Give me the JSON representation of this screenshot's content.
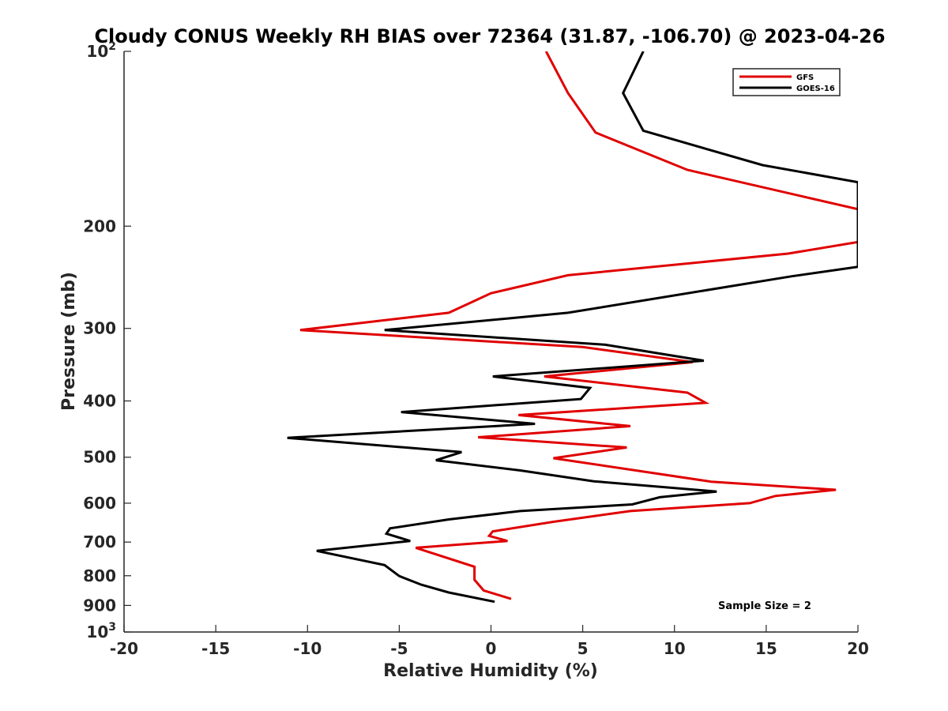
{
  "chart_data": {
    "type": "line",
    "title": "Cloudy CONUS Weekly RH BIAS over 72364 (31.87, -106.70) @ 2023-04-26",
    "xlabel": "Relative Humidity (%)",
    "ylabel": "Pressure (mb)",
    "xlim": [
      -20,
      20
    ],
    "ylim": [
      100,
      1000
    ],
    "yscale": "log",
    "y_reversed": true,
    "x_ticks": [
      "-20",
      "-15",
      "-10",
      "-5",
      "0",
      "5",
      "10",
      "15",
      "20"
    ],
    "y_ticks": [
      {
        "value": 100,
        "base": "10",
        "exp": "2"
      },
      {
        "value": 200,
        "label": "200"
      },
      {
        "value": 300,
        "label": "300"
      },
      {
        "value": 400,
        "label": "400"
      },
      {
        "value": 500,
        "label": "500"
      },
      {
        "value": 600,
        "label": "600"
      },
      {
        "value": 700,
        "label": "700"
      },
      {
        "value": 800,
        "label": "800"
      },
      {
        "value": 900,
        "label": "900"
      },
      {
        "value": 1000,
        "base": "10",
        "exp": "3"
      }
    ],
    "grid": false,
    "legend_position": "top-right",
    "annotation": "Sample Size = 2",
    "series": [
      {
        "name": "GFS",
        "color": "#e00000",
        "points": [
          {
            "x": 3.0,
            "y": 100
          },
          {
            "x": 4.2,
            "y": 118
          },
          {
            "x": 5.7,
            "y": 138
          },
          {
            "x": 10.7,
            "y": 160
          },
          {
            "x": 20.0,
            "y": 187
          },
          {
            "x": 20.0,
            "y": 213
          },
          {
            "x": 16.2,
            "y": 223
          },
          {
            "x": 4.2,
            "y": 243
          },
          {
            "x": 0.0,
            "y": 261
          },
          {
            "x": -2.3,
            "y": 282
          },
          {
            "x": -10.4,
            "y": 302
          },
          {
            "x": 5.0,
            "y": 323
          },
          {
            "x": 11.0,
            "y": 343
          },
          {
            "x": 2.9,
            "y": 363
          },
          {
            "x": 10.7,
            "y": 387
          },
          {
            "x": 11.7,
            "y": 403
          },
          {
            "x": 1.5,
            "y": 423
          },
          {
            "x": 7.6,
            "y": 442
          },
          {
            "x": -0.7,
            "y": 462
          },
          {
            "x": 7.4,
            "y": 481
          },
          {
            "x": 3.4,
            "y": 502
          },
          {
            "x": 12.0,
            "y": 551
          },
          {
            "x": 18.8,
            "y": 569
          },
          {
            "x": 15.5,
            "y": 583
          },
          {
            "x": 14.1,
            "y": 600
          },
          {
            "x": 7.6,
            "y": 619
          },
          {
            "x": 3.4,
            "y": 646
          },
          {
            "x": 0.1,
            "y": 671
          },
          {
            "x": -0.1,
            "y": 683
          },
          {
            "x": 0.9,
            "y": 697
          },
          {
            "x": -4.1,
            "y": 716
          },
          {
            "x": -0.9,
            "y": 772
          },
          {
            "x": -0.9,
            "y": 813
          },
          {
            "x": -0.4,
            "y": 848
          },
          {
            "x": 1.1,
            "y": 877
          }
        ]
      },
      {
        "name": "GOES-16",
        "color": "#000000",
        "points": [
          {
            "x": 8.3,
            "y": 100
          },
          {
            "x": 7.2,
            "y": 118
          },
          {
            "x": 8.3,
            "y": 137
          },
          {
            "x": 14.8,
            "y": 157
          },
          {
            "x": 20.0,
            "y": 168
          },
          {
            "x": 20.0,
            "y": 235
          },
          {
            "x": 16.4,
            "y": 244
          },
          {
            "x": 4.2,
            "y": 282
          },
          {
            "x": -5.8,
            "y": 302
          },
          {
            "x": 6.2,
            "y": 320
          },
          {
            "x": 11.6,
            "y": 341
          },
          {
            "x": 0.1,
            "y": 363
          },
          {
            "x": 5.4,
            "y": 380
          },
          {
            "x": 4.9,
            "y": 397
          },
          {
            "x": -4.9,
            "y": 418
          },
          {
            "x": 2.4,
            "y": 438
          },
          {
            "x": -11.1,
            "y": 463
          },
          {
            "x": -1.6,
            "y": 490
          },
          {
            "x": -3.0,
            "y": 506
          },
          {
            "x": 1.6,
            "y": 527
          },
          {
            "x": 5.6,
            "y": 550
          },
          {
            "x": 12.3,
            "y": 573
          },
          {
            "x": 9.2,
            "y": 586
          },
          {
            "x": 7.7,
            "y": 603
          },
          {
            "x": 1.6,
            "y": 619
          },
          {
            "x": -2.3,
            "y": 640
          },
          {
            "x": -5.5,
            "y": 663
          },
          {
            "x": -5.7,
            "y": 677
          },
          {
            "x": -4.4,
            "y": 697
          },
          {
            "x": -9.5,
            "y": 725
          },
          {
            "x": -5.8,
            "y": 767
          },
          {
            "x": -5.0,
            "y": 801
          },
          {
            "x": -3.8,
            "y": 829
          },
          {
            "x": -2.3,
            "y": 855
          },
          {
            "x": 0.2,
            "y": 887
          }
        ]
      }
    ]
  }
}
